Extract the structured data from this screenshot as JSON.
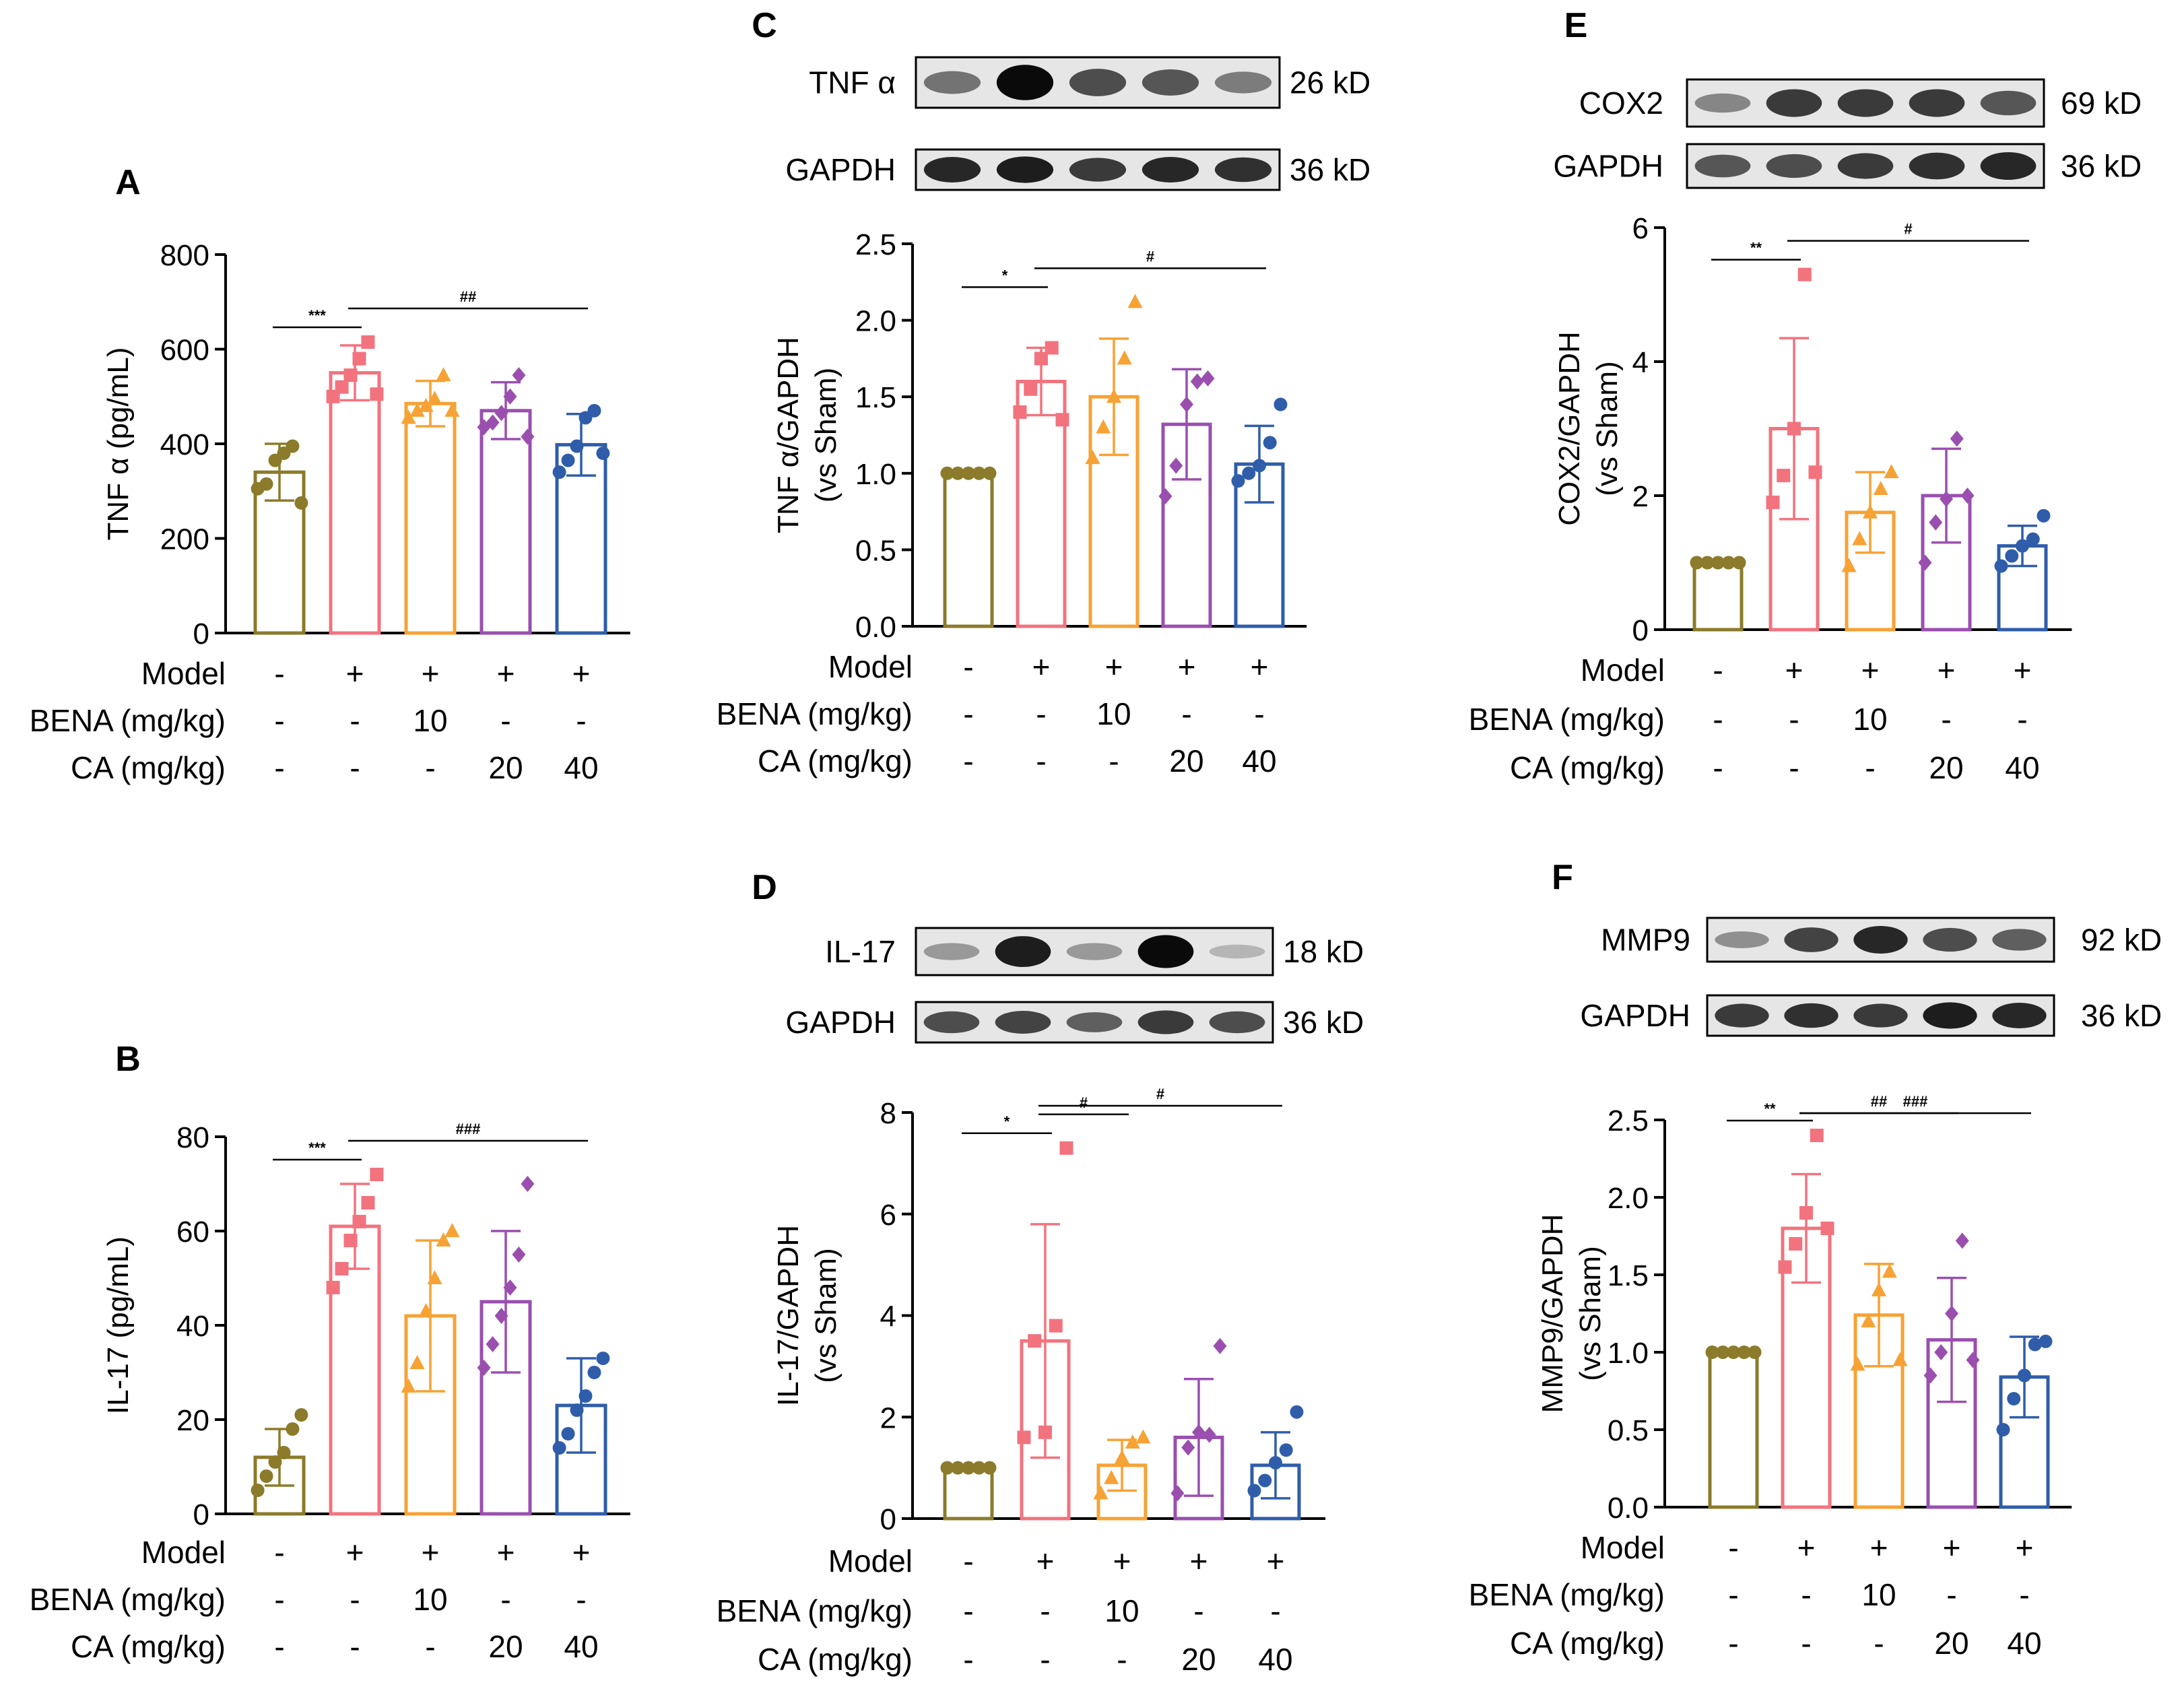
{
  "palette": {
    "sham": "#8B7B2A",
    "model": "#F2737E",
    "bena": "#F7A234",
    "ca20": "#9A4FAF",
    "ca40": "#2F5DAA",
    "blot_band": "#111111",
    "blot_bg": "#dcdcdc"
  },
  "treatment_rows": [
    "Model",
    "BENA (mg/kg)",
    "CA (mg/kg)"
  ],
  "treatment_table": [
    [
      "-",
      "+",
      "+",
      "+",
      "+"
    ],
    [
      "-",
      "-",
      "10",
      "-",
      "-"
    ],
    [
      "-",
      "-",
      "-",
      "20",
      "40"
    ]
  ],
  "marker_shapes": [
    "circle",
    "square",
    "triangle",
    "diamond",
    "circle"
  ],
  "chart_data": [
    {
      "panel": "A",
      "type": "bar",
      "ylabel": "TNF α (pg/mL)",
      "ylim": [
        0,
        800
      ],
      "yticks": [
        0,
        200,
        400,
        600,
        800
      ],
      "means": [
        340,
        550,
        485,
        470,
        398
      ],
      "sd": [
        60,
        58,
        48,
        60,
        65
      ],
      "points": [
        [
          305,
          315,
          365,
          380,
          395,
          275
        ],
        [
          500,
          520,
          545,
          580,
          615,
          505
        ],
        [
          455,
          470,
          480,
          495,
          545,
          470
        ],
        [
          435,
          445,
          465,
          500,
          545,
          415
        ],
        [
          340,
          365,
          395,
          455,
          470,
          380
        ]
      ],
      "sig": [
        {
          "from": 0,
          "to": 1,
          "label": "***"
        },
        {
          "from": 1,
          "to": 4,
          "label": "##"
        }
      ],
      "blots": []
    },
    {
      "panel": "B",
      "type": "bar",
      "ylabel": "IL-17 (pg/mL)",
      "ylim": [
        0,
        80
      ],
      "yticks": [
        0,
        20,
        40,
        60,
        80
      ],
      "means": [
        12,
        61,
        42,
        45,
        23
      ],
      "sd": [
        6,
        9,
        16,
        15,
        10
      ],
      "points": [
        [
          5,
          8,
          11,
          13,
          18,
          21
        ],
        [
          48,
          52,
          58,
          62,
          66,
          72
        ],
        [
          27,
          32,
          43,
          50,
          58,
          60
        ],
        [
          31,
          36,
          42,
          48,
          55,
          70
        ],
        [
          14,
          17,
          22,
          25,
          30,
          33
        ]
      ],
      "sig": [
        {
          "from": 0,
          "to": 1,
          "label": "***"
        },
        {
          "from": 1,
          "to": 4,
          "label": "###"
        }
      ],
      "blots": []
    },
    {
      "panel": "C",
      "type": "bar",
      "ylabel": "TNF α/GAPDH\n(vs Sham)",
      "ylim": [
        0,
        2.5
      ],
      "yticks": [
        0.0,
        0.5,
        1.0,
        1.5,
        2.0,
        2.5
      ],
      "means": [
        1.0,
        1.6,
        1.5,
        1.32,
        1.06
      ],
      "sd": [
        0,
        0.22,
        0.38,
        0.36,
        0.25
      ],
      "points": [
        [
          1.0,
          1.0,
          1.0,
          1.0,
          1.0
        ],
        [
          1.4,
          1.55,
          1.75,
          1.82,
          1.35
        ],
        [
          1.1,
          1.3,
          1.5,
          1.75,
          2.12
        ],
        [
          0.85,
          1.05,
          1.45,
          1.6,
          1.62
        ],
        [
          0.95,
          1.0,
          1.05,
          1.2,
          1.45
        ]
      ],
      "sig": [
        {
          "from": 0,
          "to": 1,
          "label": "*"
        },
        {
          "from": 1,
          "to": 4,
          "label": "#"
        }
      ],
      "blots": [
        {
          "name": "TNF α",
          "kd": "26 kD",
          "bands": [
            0.45,
            1.0,
            0.65,
            0.6,
            0.4
          ]
        },
        {
          "name": "GAPDH",
          "kd": "36 kD",
          "bands": [
            0.85,
            0.9,
            0.75,
            0.85,
            0.8
          ]
        }
      ]
    },
    {
      "panel": "D",
      "type": "bar",
      "ylabel": "IL-17/GAPDH\n(vs Sham)",
      "ylim": [
        0,
        8
      ],
      "yticks": [
        0,
        2,
        4,
        6,
        8
      ],
      "means": [
        1.0,
        3.5,
        1.05,
        1.6,
        1.05
      ],
      "sd": [
        0,
        2.3,
        0.5,
        1.15,
        0.65
      ],
      "points": [
        [
          1.0,
          1.0,
          1.0,
          1.0,
          1.0
        ],
        [
          1.6,
          3.5,
          1.7,
          3.8,
          7.3
        ],
        [
          0.5,
          0.8,
          1.2,
          1.5,
          1.6
        ],
        [
          0.5,
          1.4,
          1.7,
          1.65,
          3.4
        ],
        [
          0.55,
          0.75,
          1.1,
          1.35,
          2.1
        ]
      ],
      "sig": [
        {
          "from": 0,
          "to": 1,
          "label": "*"
        },
        {
          "from": 1,
          "to": 2,
          "label": "#"
        },
        {
          "from": 1,
          "to": 4,
          "label": "#"
        }
      ],
      "blots": [
        {
          "name": "IL-17",
          "kd": "18 kD",
          "bands": [
            0.25,
            0.9,
            0.25,
            1.0,
            0.1
          ]
        },
        {
          "name": "GAPDH",
          "kd": "36 kD",
          "bands": [
            0.65,
            0.7,
            0.55,
            0.75,
            0.65
          ]
        }
      ]
    },
    {
      "panel": "E",
      "type": "bar",
      "ylabel": "COX2/GAPDH\n(vs Sham)",
      "ylim": [
        0,
        6
      ],
      "yticks": [
        0,
        2,
        4,
        6
      ],
      "means": [
        1.0,
        3.0,
        1.75,
        2.0,
        1.25
      ],
      "sd": [
        0,
        1.35,
        0.6,
        0.7,
        0.3
      ],
      "points": [
        [
          1.0,
          1.0,
          1.0,
          1.0,
          1.0
        ],
        [
          1.9,
          2.3,
          3.0,
          5.3,
          2.35
        ],
        [
          0.95,
          1.35,
          1.75,
          2.1,
          2.35
        ],
        [
          1.0,
          1.6,
          1.95,
          2.85,
          2.0
        ],
        [
          0.95,
          1.1,
          1.25,
          1.35,
          1.7
        ]
      ],
      "sig": [
        {
          "from": 0,
          "to": 1,
          "label": "**"
        },
        {
          "from": 1,
          "to": 4,
          "label": "#"
        }
      ],
      "blots": [
        {
          "name": "COX2",
          "kd": "69 kD",
          "bands": [
            0.35,
            0.75,
            0.75,
            0.75,
            0.6
          ]
        },
        {
          "name": "GAPDH",
          "kd": "36 kD",
          "bands": [
            0.6,
            0.65,
            0.75,
            0.8,
            0.85
          ]
        }
      ]
    },
    {
      "panel": "F",
      "type": "bar",
      "ylabel": "MMP9/GAPDH\n(vs Sham)",
      "ylim": [
        0,
        2.5
      ],
      "yticks": [
        0.0,
        0.5,
        1.0,
        1.5,
        2.0,
        2.5
      ],
      "means": [
        1.0,
        1.8,
        1.24,
        1.08,
        0.84
      ],
      "sd": [
        0,
        0.35,
        0.33,
        0.4,
        0.26
      ],
      "points": [
        [
          1.0,
          1.0,
          1.0,
          1.0,
          1.0
        ],
        [
          1.55,
          1.7,
          1.9,
          2.4,
          1.8
        ],
        [
          0.92,
          1.2,
          1.4,
          1.52,
          0.95
        ],
        [
          0.85,
          1.0,
          1.25,
          1.72,
          0.95
        ],
        [
          0.5,
          0.7,
          0.85,
          1.05,
          1.07
        ]
      ],
      "sig": [
        {
          "from": 0,
          "to": 1,
          "label": "**"
        },
        {
          "from": 1,
          "to": 3,
          "label": "##"
        },
        {
          "from": 1,
          "to": 4,
          "label": "###"
        }
      ],
      "blots": [
        {
          "name": "MMP9",
          "kd": "92 kD",
          "bands": [
            0.3,
            0.7,
            0.85,
            0.65,
            0.55
          ]
        },
        {
          "name": "GAPDH",
          "kd": "36 kD",
          "bands": [
            0.75,
            0.8,
            0.75,
            0.9,
            0.85
          ]
        }
      ]
    }
  ]
}
